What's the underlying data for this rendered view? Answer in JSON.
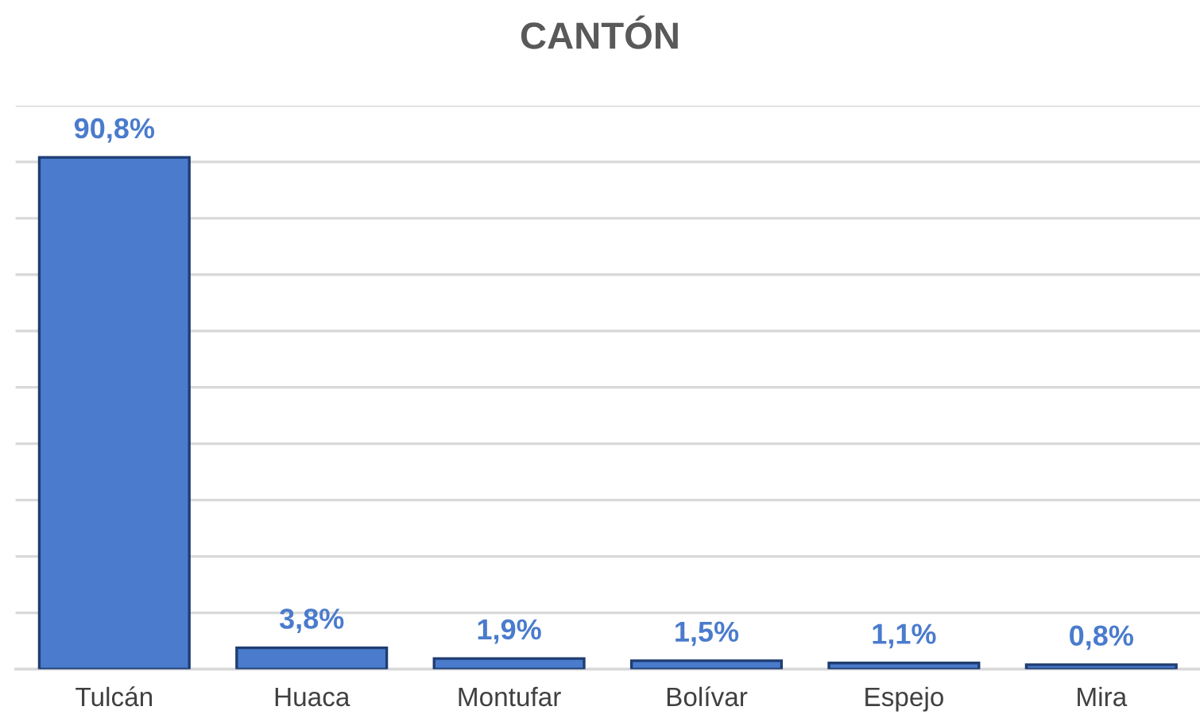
{
  "chart_data": {
    "type": "bar",
    "title": "CANTÓN",
    "categories": [
      "Tulcán",
      "Huaca",
      "Montufar",
      "Bolívar",
      "Espejo",
      "Mira"
    ],
    "values": [
      90.8,
      3.8,
      1.9,
      1.5,
      1.1,
      0.8
    ],
    "value_labels": [
      "90,8%",
      "3,8%",
      "1,9%",
      "1,5%",
      "1,1%",
      "0,8%"
    ],
    "color": "#4a7bcd",
    "ylim": [
      0,
      100
    ],
    "yticks": [
      {
        "value": 0,
        "label": null
      },
      {
        "value": 10,
        "label": null
      },
      {
        "value": 20,
        "label": null
      },
      {
        "value": 30,
        "label": null
      },
      {
        "value": 40,
        "label": null
      },
      {
        "value": 50,
        "label": null
      },
      {
        "value": 60,
        "label": null
      },
      {
        "value": 70,
        "label": null
      },
      {
        "value": 80,
        "label": null
      },
      {
        "value": 90,
        "label": null
      },
      {
        "value": 100,
        "label": null
      }
    ],
    "tick_labels": "x",
    "grid": "y",
    "legend": false
  }
}
